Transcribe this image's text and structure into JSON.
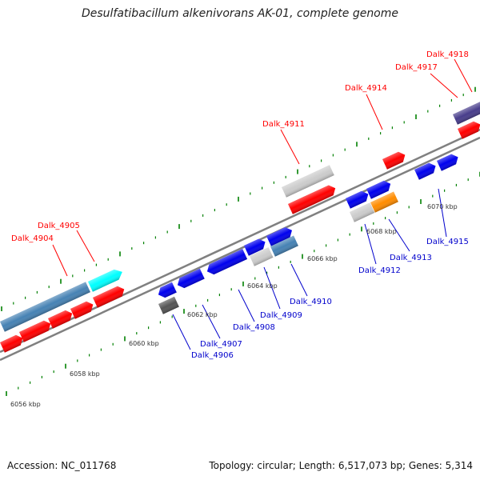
{
  "title": "Desulfatibacillum alkenivorans AK-01, complete genome",
  "footer": {
    "accession": "Accession: NC_011768",
    "info": "Topology: circular; Length: 6,517,073 bp; Genes: 5,314"
  },
  "colors": {
    "red": "#ff0000",
    "blue": "#0000ee",
    "steelblue": "#4682b4",
    "cyan": "#00ffff",
    "lightgray": "#cccccc",
    "darkgray": "#555555",
    "orange": "#ff8c00",
    "indigo": "#483d8b",
    "tick": "#008000",
    "axis": "#808080"
  },
  "scale_labels": [
    "6056 kbp",
    "6058 kbp",
    "6060 kbp",
    "6062 kbp",
    "6064 kbp",
    "6066 kbp",
    "6068 kbp",
    "6070 kbp"
  ],
  "gene_labels_top": [
    "Dalk_4904",
    "Dalk_4905",
    "Dalk_4911",
    "Dalk_4914",
    "Dalk_4917",
    "Dalk_4918"
  ],
  "gene_labels_bottom": [
    "Dalk_4906",
    "Dalk_4907",
    "Dalk_4908",
    "Dalk_4909",
    "Dalk_4910",
    "Dalk_4912",
    "Dalk_4913",
    "Dalk_4915"
  ]
}
